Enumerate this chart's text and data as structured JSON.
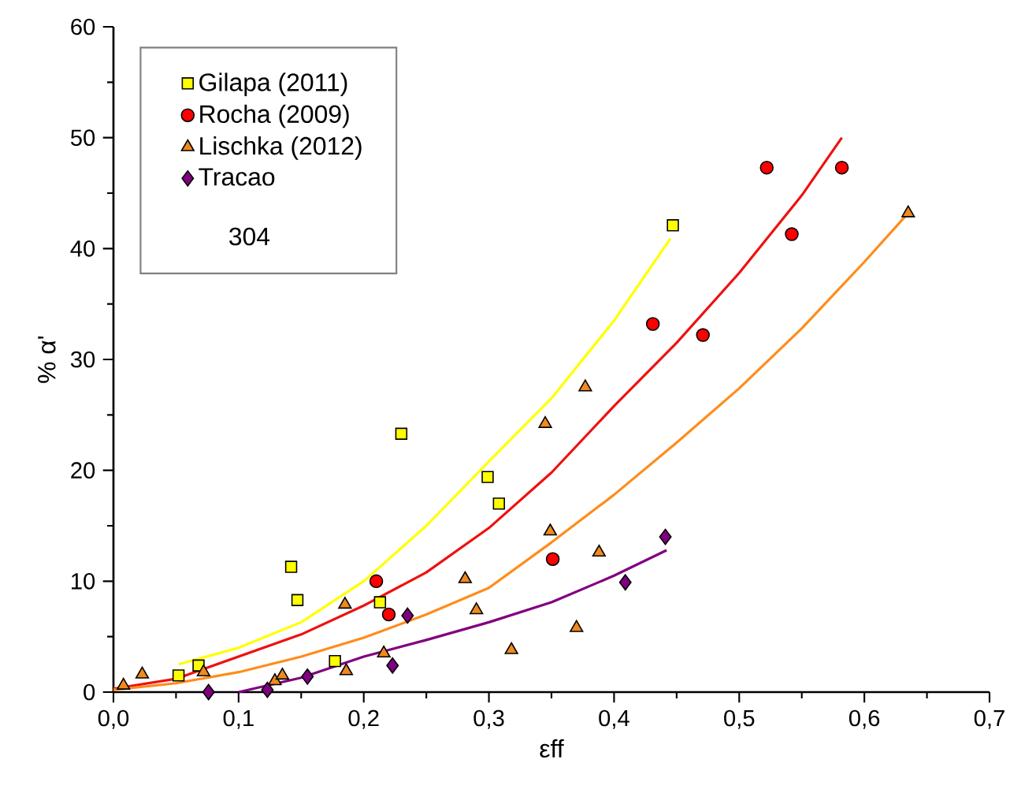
{
  "chart_data": {
    "type": "scatter",
    "xlabel": "εff",
    "ylabel": "% α'",
    "xlim": [
      0,
      0.7
    ],
    "ylim": [
      0,
      60
    ],
    "xticks": [
      {
        "value": 0,
        "label": "0,0"
      },
      {
        "value": 0.05,
        "label": null
      },
      {
        "value": 0.1,
        "label": "0,1"
      },
      {
        "value": 0.15,
        "label": null
      },
      {
        "value": 0.2,
        "label": "0,2"
      },
      {
        "value": 0.25,
        "label": null
      },
      {
        "value": 0.3,
        "label": "0,3"
      },
      {
        "value": 0.35,
        "label": null
      },
      {
        "value": 0.4,
        "label": "0,4"
      },
      {
        "value": 0.45,
        "label": null
      },
      {
        "value": 0.5,
        "label": "0,5"
      },
      {
        "value": 0.55,
        "label": null
      },
      {
        "value": 0.6,
        "label": "0,6"
      },
      {
        "value": 0.65,
        "label": null
      },
      {
        "value": 0.7,
        "label": "0,7"
      }
    ],
    "yticks": [
      0,
      {
        "value": 5,
        "label": null
      },
      10,
      {
        "value": 15,
        "label": null
      },
      20,
      {
        "value": 25,
        "label": null
      },
      30,
      {
        "value": 35,
        "label": null
      },
      40,
      {
        "value": 45,
        "label": null
      },
      50,
      {
        "value": 55,
        "label": null
      },
      60
    ],
    "legend": "top left",
    "annotations": [
      "304"
    ],
    "series": [
      {
        "name": "Gilapa (2011)",
        "color": "#ffff00",
        "marker": "square",
        "x": [
          0.052,
          0.068,
          0.142,
          0.147,
          0.177,
          0.213,
          0.23,
          0.299,
          0.308,
          0.447
        ],
        "values": [
          1.5,
          2.4,
          11.3,
          8.3,
          2.8,
          8.1,
          23.3,
          19.4,
          17.0,
          42.1
        ]
      },
      {
        "name": "Rocha (2009)",
        "color": "#ff0000",
        "marker": "circle",
        "x": [
          0.21,
          0.22,
          0.351,
          0.431,
          0.471,
          0.522,
          0.542,
          0.582
        ],
        "values": [
          10.0,
          7.0,
          12.0,
          33.2,
          32.2,
          47.3,
          41.3,
          47.3
        ]
      },
      {
        "name": "Lischka (2012)",
        "color": "#f08a1c",
        "marker": "triangle",
        "x": [
          0.008,
          0.023,
          0.072,
          0.129,
          0.135,
          0.185,
          0.186,
          0.216,
          0.281,
          0.29,
          0.318,
          0.345,
          0.349,
          0.37,
          0.377,
          0.388,
          0.635
        ],
        "values": [
          0.6,
          1.6,
          1.8,
          1.0,
          1.5,
          7.9,
          1.9,
          3.5,
          10.2,
          7.4,
          3.8,
          24.2,
          14.5,
          5.8,
          27.5,
          12.6,
          43.2
        ]
      },
      {
        "name": "Tracao",
        "color": "#800080",
        "marker": "diamond",
        "x": [
          0.076,
          0.123,
          0.155,
          0.223,
          0.235,
          0.409,
          0.441
        ],
        "values": [
          0.0,
          0.2,
          1.4,
          2.4,
          6.9,
          9.9,
          14.0
        ]
      },
      {
        "type": "line",
        "color": "#ffff00",
        "marker": "none",
        "x": [
          0.052,
          0.1,
          0.15,
          0.2,
          0.25,
          0.3,
          0.35,
          0.4,
          0.445
        ],
        "values": [
          2.5,
          4.0,
          6.3,
          10.0,
          15.0,
          20.8,
          26.5,
          33.5,
          40.9
        ]
      },
      {
        "type": "line",
        "color": "#ee1111",
        "marker": "none",
        "x": [
          0.0,
          0.05,
          0.1,
          0.15,
          0.2,
          0.25,
          0.3,
          0.35,
          0.4,
          0.45,
          0.5,
          0.55,
          0.582
        ],
        "values": [
          0.3,
          1.2,
          3.2,
          5.2,
          7.8,
          10.8,
          14.8,
          19.8,
          25.8,
          31.5,
          37.8,
          44.8,
          50.0
        ]
      },
      {
        "type": "line",
        "color": "#ff8c1a",
        "marker": "none",
        "x": [
          0.0,
          0.05,
          0.1,
          0.15,
          0.2,
          0.25,
          0.3,
          0.35,
          0.4,
          0.45,
          0.5,
          0.55,
          0.6,
          0.635
        ],
        "values": [
          0.2,
          0.8,
          1.8,
          3.2,
          4.9,
          7.0,
          9.4,
          13.5,
          17.8,
          22.5,
          27.4,
          32.8,
          38.8,
          43.2
        ]
      },
      {
        "type": "line",
        "color": "#800080",
        "marker": "none",
        "x": [
          0.1,
          0.15,
          0.2,
          0.25,
          0.3,
          0.35,
          0.4,
          0.442
        ],
        "values": [
          0.0,
          1.3,
          3.2,
          4.7,
          6.3,
          8.1,
          10.5,
          12.8
        ]
      }
    ]
  }
}
